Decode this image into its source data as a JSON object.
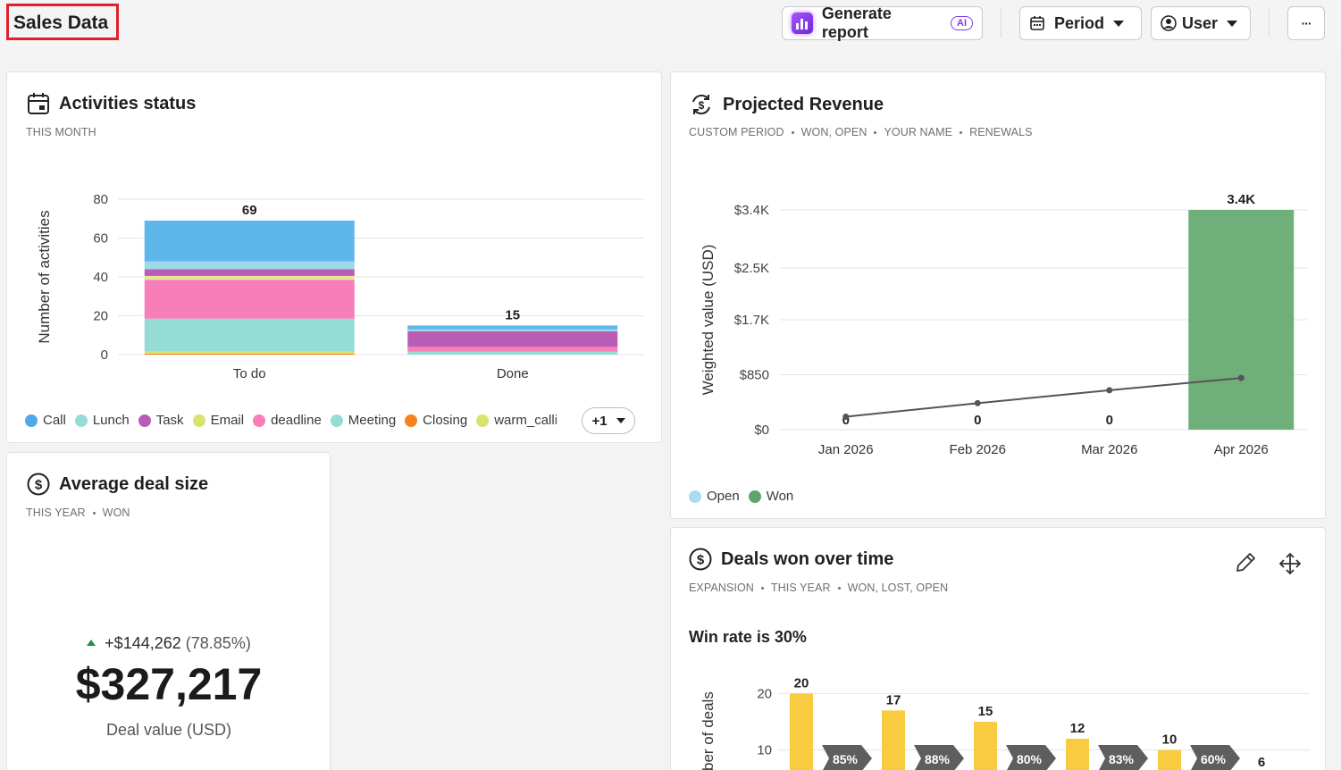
{
  "header": {
    "title": "Sales Data",
    "generate_label": "Generate report",
    "ai_badge": "AI",
    "period_label": "Period",
    "user_label": "User",
    "more_label": "···"
  },
  "activities": {
    "title": "Activities status",
    "subtitle": "THIS MONTH",
    "chart_data": {
      "type": "bar",
      "stacked": true,
      "categories": [
        "To do",
        "Done"
      ],
      "ylabel": "Number of activities",
      "ylim": [
        0,
        80
      ],
      "yticks": [
        0,
        20,
        40,
        60,
        80
      ],
      "totals": [
        69,
        15
      ],
      "series": [
        {
          "name": "Closing",
          "color": "#f5821f",
          "values": [
            0.5,
            0
          ]
        },
        {
          "name": "Email",
          "color": "#d9e36b",
          "values": [
            1,
            0
          ]
        },
        {
          "name": "Meeting",
          "color": "#95dcd6",
          "values": [
            17,
            1.5
          ]
        },
        {
          "name": "deadline",
          "color": "#f77eb9",
          "values": [
            20,
            2.5
          ]
        },
        {
          "name": "warm_calli",
          "color": "#e8e59a",
          "values": [
            2,
            0
          ]
        },
        {
          "name": "Task",
          "color": "#b95cb5",
          "values": [
            3.5,
            8
          ]
        },
        {
          "name": "Lunch",
          "color": "#9fd8e8",
          "values": [
            4,
            1
          ]
        },
        {
          "name": "Call",
          "color": "#5eb6ea",
          "values": [
            21,
            2
          ]
        }
      ]
    },
    "legend": [
      {
        "name": "Call",
        "color": "#4ea9ea"
      },
      {
        "name": "Lunch",
        "color": "#95dcd6"
      },
      {
        "name": "Task",
        "color": "#b95cb5"
      },
      {
        "name": "Email",
        "color": "#d9e36b"
      },
      {
        "name": "deadline",
        "color": "#f77eb9"
      },
      {
        "name": "Meeting",
        "color": "#95dcd6"
      },
      {
        "name": "Closing",
        "color": "#f5821f"
      },
      {
        "name": "warm_calli",
        "color": "#d9e36b"
      }
    ],
    "more_label": "+1"
  },
  "revenue": {
    "title": "Projected Revenue",
    "subtitle": [
      "CUSTOM PERIOD",
      "WON, OPEN",
      "YOUR NAME",
      "RENEWALS"
    ],
    "chart_data": {
      "type": "bar",
      "categories": [
        "Jan 2026",
        "Feb 2026",
        "Mar 2026",
        "Apr 2026"
      ],
      "ylabel": "Weighted value (USD)",
      "ylim": [
        0,
        3400
      ],
      "yticks": [
        0,
        850,
        1700,
        2500,
        3400
      ],
      "ytick_labels": [
        "$0",
        "$850",
        "$1.7K",
        "$2.5K",
        "$3.4K"
      ],
      "series": [
        {
          "name": "Won",
          "color": "#6fb07a",
          "values": [
            0,
            0,
            0,
            3400
          ]
        }
      ],
      "bar_labels": [
        "0",
        "0",
        "0",
        "3.4K"
      ],
      "line": {
        "values": [
          200,
          410,
          610,
          800
        ]
      }
    },
    "legend": [
      {
        "name": "Open",
        "color": "#a8dcf3"
      },
      {
        "name": "Won",
        "color": "#5ea36a"
      }
    ]
  },
  "avg_deal": {
    "title": "Average deal size",
    "subtitle": [
      "THIS YEAR",
      "WON"
    ],
    "change": "+$144,262",
    "change_pct": "(78.85%)",
    "value": "$327,217",
    "label": "Deal value (USD)"
  },
  "deals_won": {
    "title": "Deals won over time",
    "subtitle": [
      "EXPANSION",
      "THIS YEAR",
      "WON, LOST, OPEN"
    ],
    "win_rate": "Win rate is 30%",
    "chart_data": {
      "type": "bar",
      "ylabel": "ber of deals",
      "ylim": [
        0,
        24
      ],
      "yticks": [
        10,
        20
      ],
      "values": [
        20,
        17,
        15,
        12,
        10,
        6
      ],
      "conversion": [
        "85%",
        "88%",
        "80%",
        "83%",
        "60%"
      ],
      "color": "#f9cb40"
    }
  }
}
